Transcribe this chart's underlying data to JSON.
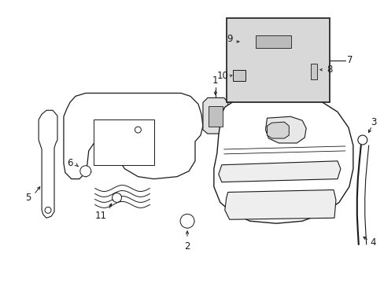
{
  "bg_color": "#ffffff",
  "inset_bg": "#d8d8d8",
  "line_color": "#1a1a1a",
  "label_color": "#000000",
  "font_size": 8.5,
  "fig_w": 4.89,
  "fig_h": 3.6,
  "dpi": 100
}
